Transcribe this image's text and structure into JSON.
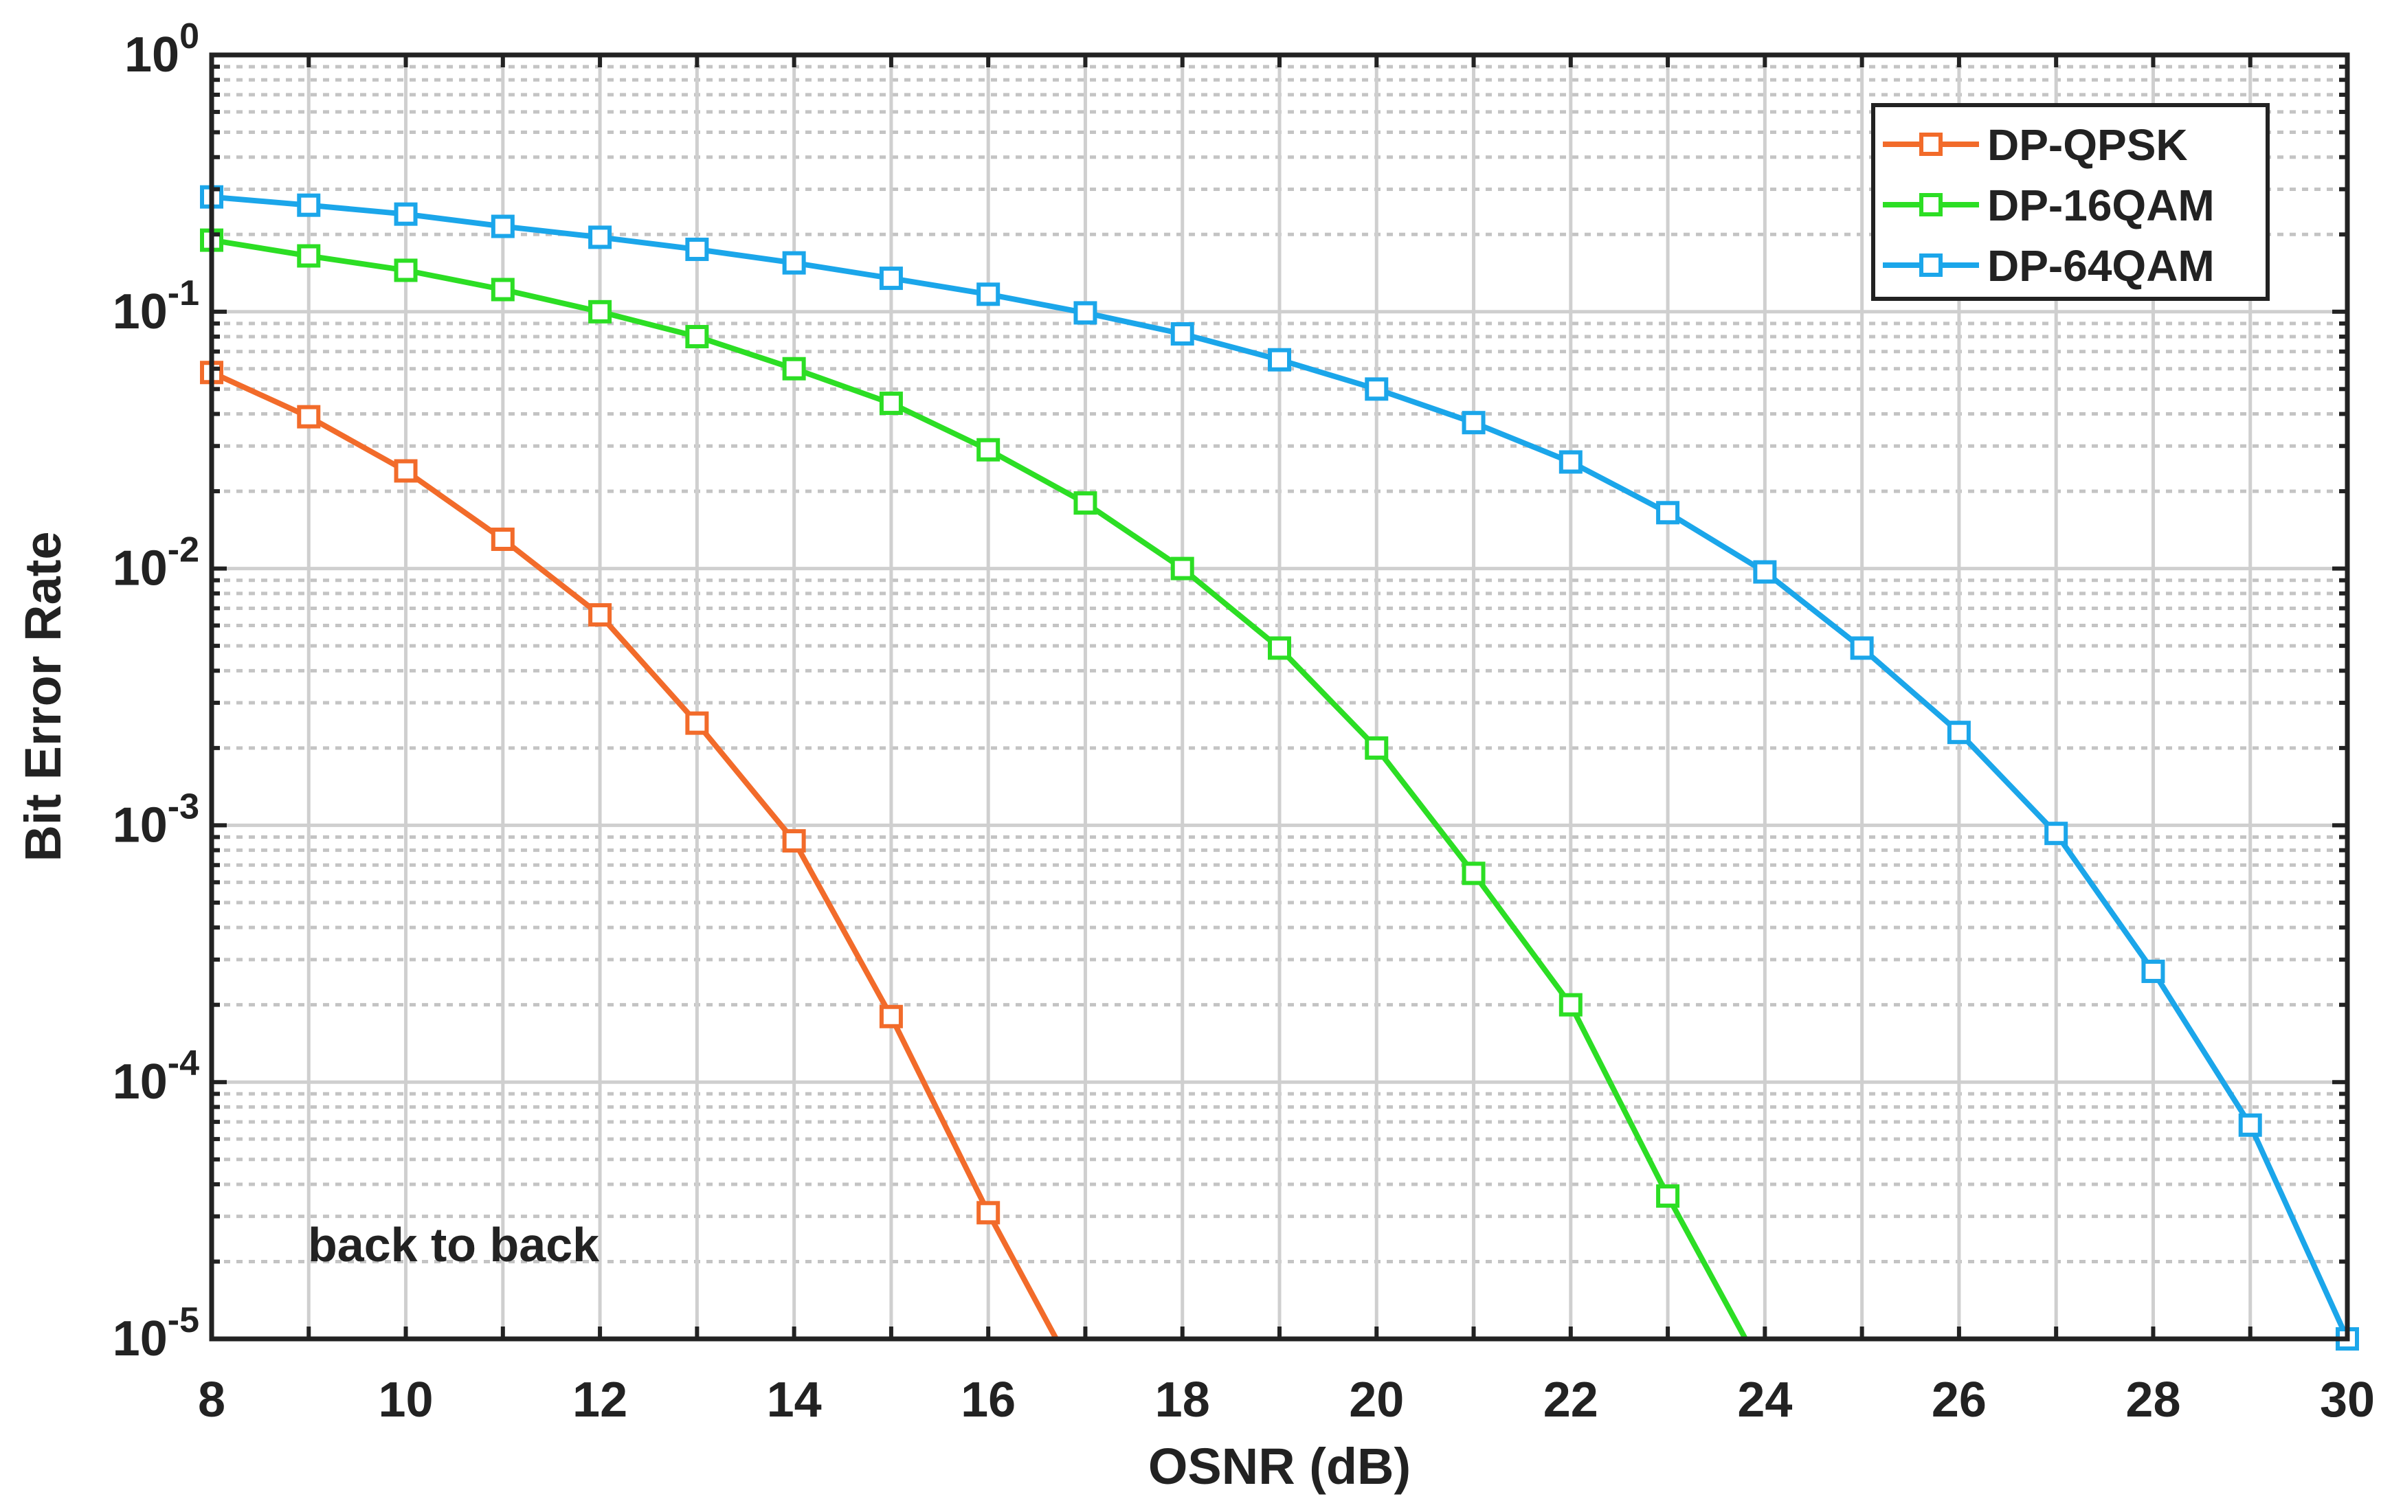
{
  "chart_data": {
    "type": "line",
    "title": "",
    "xlabel": "OSNR (dB)",
    "ylabel": "Bit Error Rate",
    "xlim": [
      8,
      30
    ],
    "ylim": [
      1e-05,
      1
    ],
    "yscale": "log",
    "grid": true,
    "legend_position": "top-right",
    "x_ticks": [
      {
        "value": 8,
        "label": "8"
      },
      {
        "value": 10,
        "label": "10"
      },
      {
        "value": 12,
        "label": "12"
      },
      {
        "value": 14,
        "label": "14"
      },
      {
        "value": 16,
        "label": "16"
      },
      {
        "value": 18,
        "label": "18"
      },
      {
        "value": 20,
        "label": "20"
      },
      {
        "value": 22,
        "label": "22"
      },
      {
        "value": 24,
        "label": "24"
      },
      {
        "value": 26,
        "label": "26"
      },
      {
        "value": 28,
        "label": "28"
      },
      {
        "value": 30,
        "label": "30"
      }
    ],
    "y_ticks": [
      {
        "exp": 0,
        "base": "10",
        "power": "0"
      },
      {
        "exp": -1,
        "base": "10",
        "power": "-1"
      },
      {
        "exp": -2,
        "base": "10",
        "power": "-2"
      },
      {
        "exp": -3,
        "base": "10",
        "power": "-3"
      },
      {
        "exp": -4,
        "base": "10",
        "power": "-4"
      },
      {
        "exp": -5,
        "base": "10",
        "power": "-5"
      }
    ],
    "annotation": "back to back",
    "series": [
      {
        "name": "DP-QPSK",
        "color": "#F26B2A",
        "marker_x": [
          8,
          9,
          10,
          11,
          12,
          13,
          14,
          15,
          16
        ],
        "marker_y": [
          0.058,
          0.039,
          0.024,
          0.013,
          0.0066,
          0.0025,
          0.00087,
          0.00018,
          3.1e-05
        ],
        "line_x": [
          8,
          9,
          10,
          11,
          12,
          13,
          14,
          15,
          16,
          16.7
        ],
        "line_y": [
          0.058,
          0.039,
          0.024,
          0.013,
          0.0066,
          0.0025,
          0.00087,
          0.00018,
          3.1e-05,
          1e-05
        ]
      },
      {
        "name": "DP-16QAM",
        "color": "#2CDE24",
        "marker_x": [
          8,
          9,
          10,
          11,
          12,
          13,
          14,
          15,
          16,
          17,
          18,
          19,
          20,
          21,
          22,
          23
        ],
        "marker_y": [
          0.19,
          0.165,
          0.145,
          0.122,
          0.1,
          0.08,
          0.06,
          0.044,
          0.029,
          0.018,
          0.01,
          0.0049,
          0.002,
          0.00065,
          0.0002,
          3.6e-05
        ],
        "line_x": [
          8,
          9,
          10,
          11,
          12,
          13,
          14,
          15,
          16,
          17,
          18,
          19,
          20,
          21,
          22,
          23,
          23.8
        ],
        "line_y": [
          0.19,
          0.165,
          0.145,
          0.122,
          0.1,
          0.08,
          0.06,
          0.044,
          0.029,
          0.018,
          0.01,
          0.0049,
          0.002,
          0.00065,
          0.0002,
          3.6e-05,
          1e-05
        ]
      },
      {
        "name": "DP-64QAM",
        "color": "#1BA6EA",
        "marker_x": [
          8,
          9,
          10,
          11,
          12,
          13,
          14,
          15,
          16,
          17,
          18,
          19,
          20,
          21,
          22,
          23,
          24,
          25,
          26,
          27,
          28,
          29,
          30
        ],
        "marker_y": [
          0.28,
          0.26,
          0.24,
          0.215,
          0.195,
          0.175,
          0.155,
          0.135,
          0.117,
          0.099,
          0.082,
          0.065,
          0.05,
          0.037,
          0.026,
          0.0165,
          0.0097,
          0.0049,
          0.0023,
          0.00093,
          0.00027,
          6.8e-05,
          1e-05
        ],
        "line_x": [
          8,
          9,
          10,
          11,
          12,
          13,
          14,
          15,
          16,
          17,
          18,
          19,
          20,
          21,
          22,
          23,
          24,
          25,
          26,
          27,
          28,
          29,
          30
        ],
        "line_y": [
          0.28,
          0.26,
          0.24,
          0.215,
          0.195,
          0.175,
          0.155,
          0.135,
          0.117,
          0.099,
          0.082,
          0.065,
          0.05,
          0.037,
          0.026,
          0.0165,
          0.0097,
          0.0049,
          0.0023,
          0.00093,
          0.00027,
          6.8e-05,
          1e-05
        ]
      }
    ]
  }
}
